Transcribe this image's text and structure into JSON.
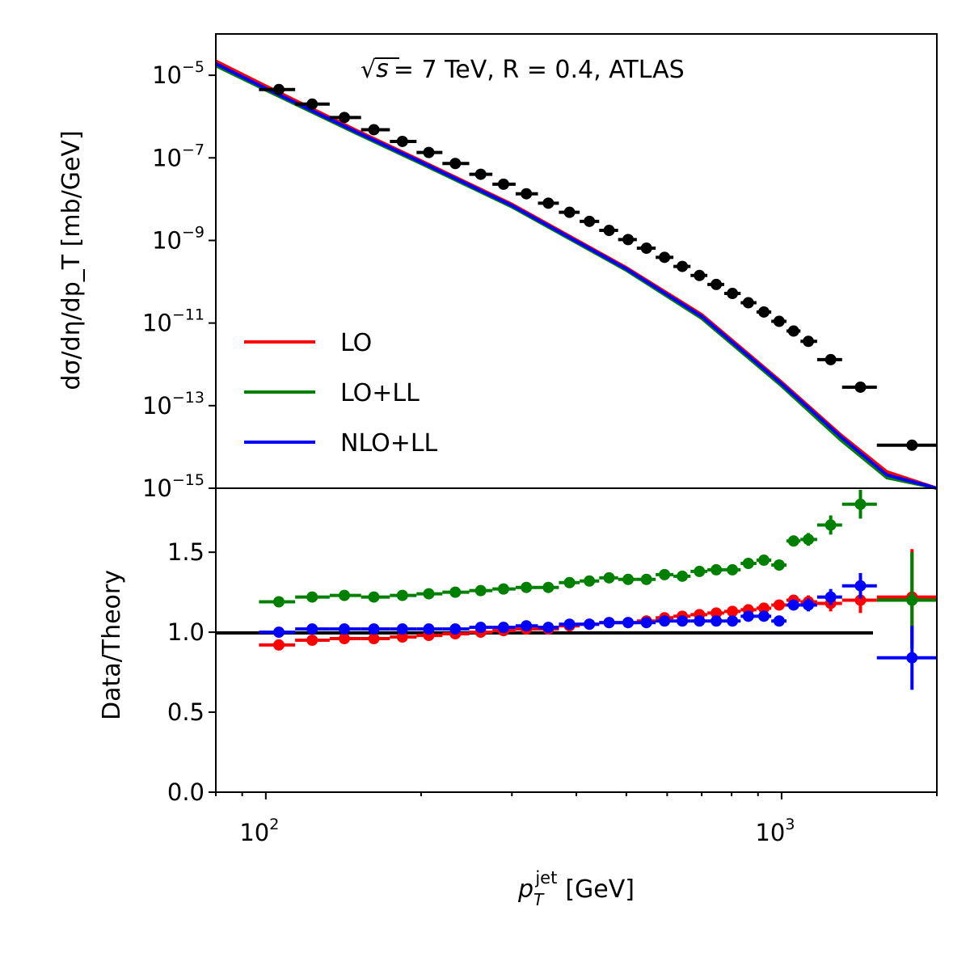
{
  "chart_data": [
    {
      "panel": "top",
      "type": "line+scatter",
      "annotation": {
        "sqrt_part": "s",
        "rest": "= 7 TeV, R = 0.4, ATLAS"
      },
      "ylabel": "dσ/dη/dp_T [mb/GeV]",
      "yscale": "log",
      "xscale": "log",
      "xlim": [
        80,
        2000
      ],
      "ylim": [
        1e-15,
        0.0001
      ],
      "y_tick_labels": [
        {
          "value": 1e-05,
          "base": "10",
          "exp": "−5"
        },
        {
          "value": 1e-07,
          "base": "10",
          "exp": "−7"
        },
        {
          "value": 1e-09,
          "base": "10",
          "exp": "−9"
        },
        {
          "value": 1e-11,
          "base": "10",
          "exp": "−11"
        },
        {
          "value": 1e-13,
          "base": "10",
          "exp": "−13"
        },
        {
          "value": 1e-15,
          "base": "10",
          "exp": "−15"
        }
      ],
      "legend_position": "lower-left",
      "colors": {
        "LO": "#ff0000",
        "LO+LL": "#008000",
        "NLO+LL": "#0000ff",
        "data": "#000000"
      },
      "series": [
        {
          "name": "LO",
          "color": "#ff0000",
          "x": [
            80,
            100,
            150,
            200,
            300,
            500,
            700,
            1000,
            1300,
            1600,
            2000
          ],
          "y": [
            2.2e-05,
            5.5e-06,
            4.6e-07,
            8.5e-08,
            7.5e-09,
            2.2e-10,
            1.6e-11,
            3.7e-13,
            2e-14,
            2.5e-15,
            8e-16
          ]
        },
        {
          "name": "LO+LL",
          "color": "#008000",
          "x": [
            80,
            100,
            150,
            200,
            300,
            500,
            700,
            1000,
            1300,
            1600,
            2000
          ],
          "y": [
            1.7e-05,
            4.4e-06,
            3.9e-07,
            7.3e-08,
            6.5e-09,
            1.9e-10,
            1.3e-11,
            3e-13,
            1.5e-14,
            1.8e-15,
            8e-16
          ]
        },
        {
          "name": "NLO+LL",
          "color": "#0000ff",
          "x": [
            80,
            100,
            150,
            200,
            300,
            500,
            700,
            1000,
            1300,
            1600,
            2000
          ],
          "y": [
            1.9e-05,
            4.8e-06,
            4.2e-07,
            7.9e-08,
            7e-09,
            2.05e-10,
            1.45e-11,
            3.4e-13,
            1.8e-14,
            2.1e-15,
            8e-16
          ]
        }
      ],
      "data_points": {
        "name": "ATLAS data",
        "x": [
          106,
          123,
          142,
          162,
          184,
          207,
          233,
          261,
          289,
          320,
          353,
          388,
          424,
          463,
          504,
          547,
          593,
          642,
          693,
          747,
          803,
          862,
          924,
          989,
          1055,
          1127,
          1245,
          1422,
          1790
        ],
        "y": [
          4.5e-06,
          2e-06,
          9.5e-07,
          4.8e-07,
          2.5e-07,
          1.35e-07,
          7.3e-08,
          4e-08,
          2.3e-08,
          1.35e-08,
          8e-09,
          4.8e-09,
          2.9e-09,
          1.75e-09,
          1.05e-09,
          6.5e-10,
          3.9e-10,
          2.35e-10,
          1.42e-10,
          8.6e-11,
          5.2e-11,
          3.1e-11,
          1.85e-11,
          1.1e-11,
          6.4e-12,
          3.6e-12,
          1.3e-12,
          2.8e-13,
          1.1e-14
        ],
        "xerr_low": [
          97,
          114,
          133,
          153,
          174,
          196,
          220,
          248,
          275,
          305,
          337,
          370,
          406,
          443,
          482,
          524,
          570,
          617,
          666,
          718,
          774,
          833,
          894,
          955,
          1022,
          1088,
          1172,
          1310,
          1530
        ],
        "xerr_high": [
          114,
          133,
          153,
          174,
          196,
          220,
          248,
          275,
          305,
          337,
          370,
          406,
          443,
          482,
          524,
          570,
          617,
          666,
          718,
          774,
          833,
          894,
          955,
          1022,
          1088,
          1172,
          1310,
          1530,
          2000
        ]
      }
    },
    {
      "panel": "bottom",
      "type": "scatter-errorbar",
      "ylabel": "Data/Theory",
      "xlabel": "p_T^jet [GeV]",
      "xscale": "log",
      "xlim": [
        80,
        2000
      ],
      "ylim": [
        0.0,
        1.9
      ],
      "y_ticks": [
        "0.0",
        "0.5",
        "1.0",
        "1.5"
      ],
      "x_ticks": [
        {
          "value": 100,
          "base": "10",
          "exp": "2"
        },
        {
          "value": 1000,
          "base": "10",
          "exp": "3"
        }
      ],
      "reference_line": 1.0,
      "x": [
        106,
        123,
        142,
        162,
        184,
        207,
        233,
        261,
        289,
        320,
        353,
        388,
        424,
        463,
        504,
        547,
        593,
        642,
        693,
        747,
        803,
        862,
        924,
        989,
        1055,
        1127,
        1245,
        1422,
        1790
      ],
      "series": [
        {
          "name": "LO",
          "color": "#ff0000",
          "y": [
            0.92,
            0.95,
            0.96,
            0.96,
            0.97,
            0.98,
            0.99,
            1.0,
            1.01,
            1.02,
            1.02,
            1.04,
            1.05,
            1.06,
            1.06,
            1.07,
            1.09,
            1.1,
            1.11,
            1.12,
            1.13,
            1.14,
            1.15,
            1.17,
            1.2,
            1.19,
            1.18,
            1.2,
            1.22
          ],
          "yerr": [
            0.02,
            0.02,
            0.02,
            0.02,
            0.02,
            0.02,
            0.02,
            0.02,
            0.02,
            0.02,
            0.02,
            0.02,
            0.02,
            0.02,
            0.02,
            0.02,
            0.02,
            0.02,
            0.02,
            0.02,
            0.02,
            0.02,
            0.02,
            0.03,
            0.03,
            0.04,
            0.05,
            0.08,
            0.3
          ]
        },
        {
          "name": "LO+LL",
          "color": "#008000",
          "y": [
            1.19,
            1.22,
            1.23,
            1.22,
            1.23,
            1.24,
            1.25,
            1.26,
            1.27,
            1.28,
            1.28,
            1.31,
            1.32,
            1.34,
            1.33,
            1.33,
            1.36,
            1.35,
            1.38,
            1.39,
            1.39,
            1.43,
            1.45,
            1.42,
            1.57,
            1.58,
            1.67,
            1.8,
            1.2
          ],
          "yerr": [
            0.02,
            0.02,
            0.02,
            0.02,
            0.02,
            0.02,
            0.02,
            0.02,
            0.02,
            0.02,
            0.02,
            0.02,
            0.02,
            0.02,
            0.02,
            0.02,
            0.02,
            0.02,
            0.02,
            0.02,
            0.02,
            0.02,
            0.02,
            0.03,
            0.03,
            0.04,
            0.06,
            0.09,
            0.3
          ]
        },
        {
          "name": "NLO+LL",
          "color": "#0000ff",
          "y": [
            1.0,
            1.02,
            1.02,
            1.02,
            1.02,
            1.02,
            1.02,
            1.03,
            1.03,
            1.04,
            1.03,
            1.05,
            1.05,
            1.06,
            1.06,
            1.06,
            1.07,
            1.07,
            1.07,
            1.07,
            1.07,
            1.1,
            1.1,
            1.07,
            1.17,
            1.17,
            1.22,
            1.29,
            0.84
          ],
          "yerr": [
            0.02,
            0.02,
            0.02,
            0.02,
            0.02,
            0.02,
            0.02,
            0.02,
            0.02,
            0.02,
            0.02,
            0.02,
            0.02,
            0.02,
            0.02,
            0.02,
            0.02,
            0.02,
            0.02,
            0.02,
            0.02,
            0.02,
            0.02,
            0.03,
            0.03,
            0.04,
            0.05,
            0.08,
            0.2
          ]
        }
      ]
    }
  ]
}
